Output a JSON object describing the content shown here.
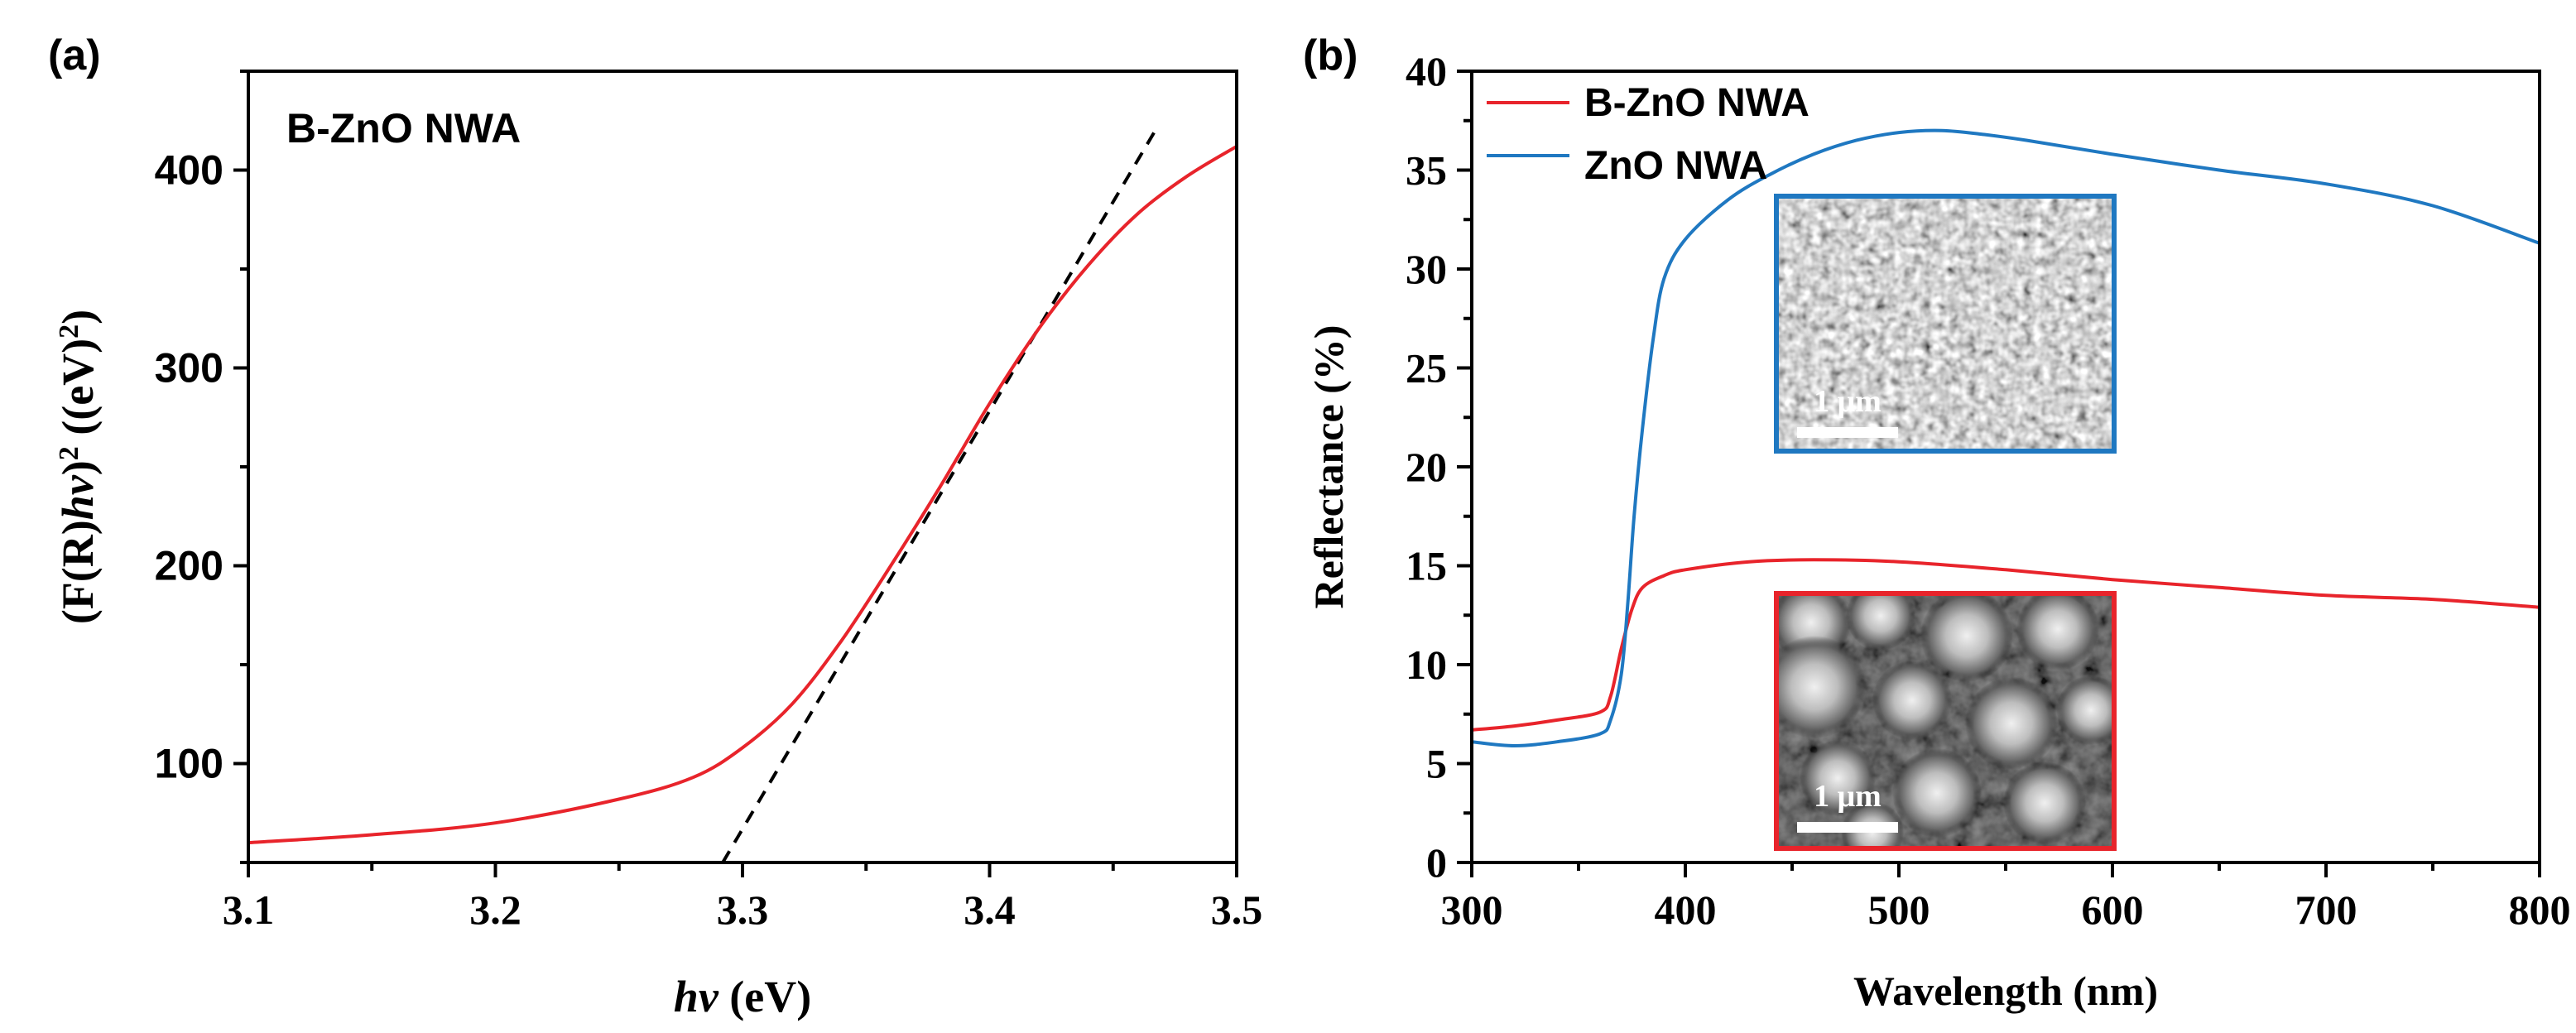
{
  "chart_data": [
    {
      "panel_label": "(a)",
      "type": "line",
      "xlim": [
        3.1,
        3.5
      ],
      "ylim": [
        50,
        450
      ],
      "x_ticks": [
        "3.1",
        "3.2",
        "3.3",
        "3.4",
        "3.5"
      ],
      "y_ticks": [
        "100",
        "200",
        "300",
        "400"
      ],
      "x_tick_values": [
        3.1,
        3.2,
        3.3,
        3.4,
        3.5
      ],
      "y_tick_values": [
        100,
        200,
        300,
        400
      ],
      "xlabel": {
        "italic": "hv",
        "rest": " (eV)"
      },
      "ylabel": {
        "p1": "(F(R)",
        "p1_italic": "hv",
        "p2": ")",
        "sup1": "2",
        "p3": " ((eV)",
        "sup2": "2",
        "p4": ")"
      },
      "annotation": "B-ZnO NWA",
      "grid": false,
      "series": [
        {
          "color": "#e8242b",
          "x": [
            3.1,
            3.15,
            3.2,
            3.25,
            3.28,
            3.3,
            3.32,
            3.34,
            3.36,
            3.38,
            3.4,
            3.42,
            3.44,
            3.46,
            3.48,
            3.5
          ],
          "y": [
            60,
            64,
            70,
            82,
            93,
            108,
            130,
            162,
            200,
            240,
            282,
            320,
            352,
            378,
            397,
            412
          ]
        }
      ],
      "fit_line": {
        "color": "#000000",
        "style": "dashed",
        "x": [
          3.292,
          3.468
        ],
        "y": [
          50,
          422
        ]
      }
    },
    {
      "panel_label": "(b)",
      "type": "line",
      "xlim": [
        300,
        800
      ],
      "ylim": [
        0,
        40
      ],
      "x_ticks": [
        "300",
        "400",
        "500",
        "600",
        "700",
        "800"
      ],
      "y_ticks": [
        "0",
        "5",
        "10",
        "15",
        "20",
        "25",
        "30",
        "35",
        "40"
      ],
      "x_tick_values": [
        300,
        400,
        500,
        600,
        700,
        800
      ],
      "y_tick_values": [
        0,
        5,
        10,
        15,
        20,
        25,
        30,
        35,
        40
      ],
      "xlabel": "Wavelength (nm)",
      "ylabel": "Reflectance (%)",
      "legend_position": "top-left",
      "grid": false,
      "series": [
        {
          "name": "B-ZnO NWA",
          "color": "#e8242b",
          "x": [
            300,
            320,
            340,
            360,
            365,
            370,
            375,
            380,
            390,
            400,
            430,
            460,
            500,
            550,
            600,
            650,
            700,
            750,
            800
          ],
          "y": [
            6.7,
            6.9,
            7.2,
            7.6,
            8.4,
            10.8,
            12.8,
            13.9,
            14.5,
            14.8,
            15.2,
            15.3,
            15.2,
            14.8,
            14.3,
            13.9,
            13.5,
            13.3,
            12.9
          ]
        },
        {
          "name": "ZnO NWA",
          "color": "#1f78c1",
          "x": [
            300,
            320,
            340,
            360,
            365,
            370,
            373,
            376,
            380,
            385,
            390,
            400,
            420,
            440,
            460,
            480,
            500,
            520,
            540,
            560,
            600,
            650,
            700,
            750,
            800
          ],
          "y": [
            6.1,
            5.9,
            6.1,
            6.5,
            7.2,
            9.5,
            13,
            17.5,
            22,
            26.5,
            29.5,
            31.5,
            33.5,
            34.8,
            35.8,
            36.5,
            36.9,
            37.0,
            36.8,
            36.5,
            35.8,
            35.0,
            34.3,
            33.2,
            31.3
          ]
        }
      ],
      "insets": [
        {
          "border_color": "#1f78c1",
          "scale_bar": "1 μm",
          "texture": "dense-nanowires"
        },
        {
          "border_color": "#e8242b",
          "scale_bar": "1 μm",
          "texture": "urchin-clusters"
        }
      ]
    }
  ]
}
